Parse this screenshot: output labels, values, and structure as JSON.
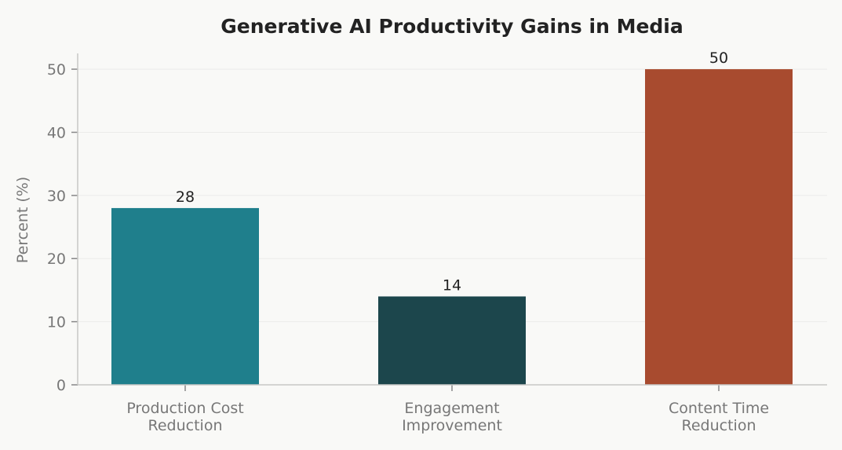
{
  "chart_data": {
    "type": "bar",
    "title": "Generative AI Productivity Gains in Media",
    "ylabel": "Percent (%)",
    "xlabel": "",
    "categories": [
      [
        "Production Cost",
        "Reduction"
      ],
      [
        "Engagement",
        "Improvement"
      ],
      [
        "Content Time",
        "Reduction"
      ]
    ],
    "values": [
      28,
      14,
      50
    ],
    "data_labels": [
      "28",
      "14",
      "50"
    ],
    "colors": [
      "#1f7f8c",
      "#1c464c",
      "#a84b2f"
    ],
    "ylim": [
      0,
      52.5
    ],
    "yticks": [
      0,
      10,
      20,
      30,
      40,
      50
    ],
    "grid": true,
    "legend": "none"
  }
}
